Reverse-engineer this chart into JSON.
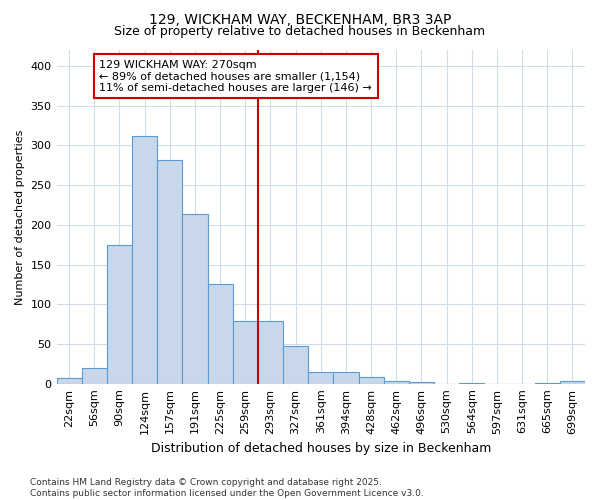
{
  "title": "129, WICKHAM WAY, BECKENHAM, BR3 3AP",
  "subtitle": "Size of property relative to detached houses in Beckenham",
  "xlabel": "Distribution of detached houses by size in Beckenham",
  "ylabel": "Number of detached properties",
  "categories": [
    "22sqm",
    "56sqm",
    "90sqm",
    "124sqm",
    "157sqm",
    "191sqm",
    "225sqm",
    "259sqm",
    "293sqm",
    "327sqm",
    "361sqm",
    "394sqm",
    "428sqm",
    "462sqm",
    "496sqm",
    "530sqm",
    "564sqm",
    "597sqm",
    "631sqm",
    "665sqm",
    "699sqm"
  ],
  "values": [
    7,
    20,
    175,
    312,
    282,
    213,
    126,
    79,
    79,
    48,
    15,
    15,
    8,
    3,
    2,
    0,
    1,
    0,
    0,
    1,
    3
  ],
  "bar_color": "#c8d8ea",
  "bar_edge_color": "#5b9bd5",
  "vline_color": "#cc0000",
  "annotation_text": "129 WICKHAM WAY: 270sqm\n← 89% of detached houses are smaller (1,154)\n11% of semi-detached houses are larger (146) →",
  "annotation_box_facecolor": "#ffffff",
  "annotation_box_edgecolor": "#cc0000",
  "background_color": "#ffffff",
  "grid_color": "#d0dce8",
  "footer_text": "Contains HM Land Registry data © Crown copyright and database right 2025.\nContains public sector information licensed under the Open Government Licence v3.0.",
  "ylim": [
    0,
    420
  ],
  "yticks": [
    0,
    50,
    100,
    150,
    200,
    250,
    300,
    350,
    400
  ],
  "title_fontsize": 10,
  "subtitle_fontsize": 9,
  "xlabel_fontsize": 9,
  "ylabel_fontsize": 8,
  "tick_fontsize": 8,
  "annotation_fontsize": 8,
  "footer_fontsize": 6.5
}
